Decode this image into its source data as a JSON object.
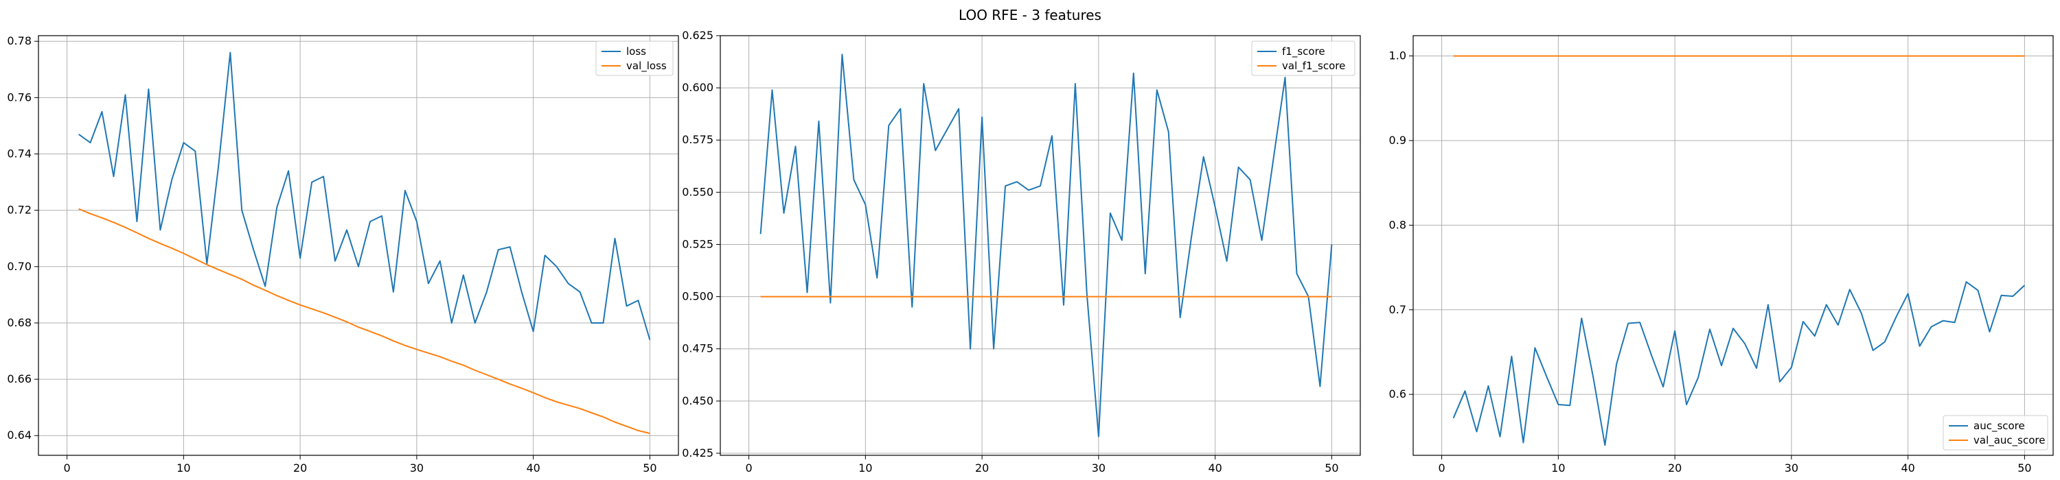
{
  "title": "LOO RFE - 3 features",
  "colors": {
    "series1": "#1f77b4",
    "series2": "#ff7f0e",
    "grid": "#b0b0b0",
    "axis": "#000000"
  },
  "chart_data": [
    {
      "type": "line",
      "title": "",
      "xlabel": "",
      "ylabel": "",
      "xlim": [
        -2.45,
        52.45
      ],
      "ylim": [
        0.633,
        0.782
      ],
      "xticks": [
        0,
        10,
        20,
        30,
        40,
        50
      ],
      "xtick_labels": [
        "0",
        "10",
        "20",
        "30",
        "40",
        "50"
      ],
      "yticks": [
        0.64,
        0.66,
        0.68,
        0.7,
        0.72,
        0.74,
        0.76,
        0.78
      ],
      "ytick_labels": [
        "0.64",
        "0.66",
        "0.68",
        "0.70",
        "0.72",
        "0.74",
        "0.76",
        "0.78"
      ],
      "grid": true,
      "legend_position": "upper right",
      "x": [
        1,
        2,
        3,
        4,
        5,
        6,
        7,
        8,
        9,
        10,
        11,
        12,
        13,
        14,
        15,
        16,
        17,
        18,
        19,
        20,
        21,
        22,
        23,
        24,
        25,
        26,
        27,
        28,
        29,
        30,
        31,
        32,
        33,
        34,
        35,
        36,
        37,
        38,
        39,
        40,
        41,
        42,
        43,
        44,
        45,
        46,
        47,
        48,
        49,
        50
      ],
      "series": [
        {
          "name": "loss",
          "color": "#1f77b4",
          "values": [
            0.747,
            0.744,
            0.755,
            0.732,
            0.761,
            0.716,
            0.763,
            0.713,
            0.731,
            0.744,
            0.741,
            0.701,
            0.736,
            0.776,
            0.72,
            0.706,
            0.693,
            0.721,
            0.734,
            0.703,
            0.73,
            0.732,
            0.702,
            0.713,
            0.7,
            0.716,
            0.718,
            0.691,
            0.727,
            0.716,
            0.694,
            0.702,
            0.68,
            0.697,
            0.68,
            0.691,
            0.706,
            0.707,
            0.691,
            0.677,
            0.704,
            0.7,
            0.694,
            0.691,
            0.68,
            0.68,
            0.71,
            0.686,
            0.688,
            0.674
          ]
        },
        {
          "name": "val_loss",
          "color": "#ff7f0e",
          "values": [
            0.7205,
            0.7188,
            0.7173,
            0.7157,
            0.7139,
            0.712,
            0.71,
            0.7082,
            0.7065,
            0.7047,
            0.7027,
            0.7007,
            0.6989,
            0.6972,
            0.6955,
            0.6934,
            0.6916,
            0.6897,
            0.688,
            0.6864,
            0.685,
            0.6836,
            0.682,
            0.6804,
            0.6785,
            0.677,
            0.6754,
            0.6736,
            0.672,
            0.6706,
            0.6693,
            0.668,
            0.6664,
            0.665,
            0.6632,
            0.6616,
            0.66,
            0.6583,
            0.6568,
            0.6552,
            0.6535,
            0.652,
            0.6508,
            0.6496,
            0.6481,
            0.6466,
            0.6448,
            0.6433,
            0.6418,
            0.6408
          ]
        }
      ]
    },
    {
      "type": "line",
      "title": "",
      "xlabel": "",
      "ylabel": "",
      "xlim": [
        -2.45,
        52.45
      ],
      "ylim": [
        0.424,
        0.625
      ],
      "xticks": [
        0,
        10,
        20,
        30,
        40,
        50
      ],
      "xtick_labels": [
        "0",
        "10",
        "20",
        "30",
        "40",
        "50"
      ],
      "yticks": [
        0.425,
        0.45,
        0.475,
        0.5,
        0.525,
        0.55,
        0.575,
        0.6,
        0.625
      ],
      "ytick_labels": [
        "0.425",
        "0.450",
        "0.475",
        "0.500",
        "0.525",
        "0.550",
        "0.575",
        "0.600",
        "0.625"
      ],
      "grid": true,
      "legend_position": "upper right",
      "x": [
        1,
        2,
        3,
        4,
        5,
        6,
        7,
        8,
        9,
        10,
        11,
        12,
        13,
        14,
        15,
        16,
        17,
        18,
        19,
        20,
        21,
        22,
        23,
        24,
        25,
        26,
        27,
        28,
        29,
        30,
        31,
        32,
        33,
        34,
        35,
        36,
        37,
        38,
        39,
        40,
        41,
        42,
        43,
        44,
        45,
        46,
        47,
        48,
        49,
        50
      ],
      "series": [
        {
          "name": "f1_score",
          "color": "#1f77b4",
          "values": [
            0.53,
            0.599,
            0.54,
            0.572,
            0.502,
            0.584,
            0.497,
            0.616,
            0.556,
            0.544,
            0.509,
            0.582,
            0.59,
            0.495,
            0.602,
            0.57,
            0.58,
            0.59,
            0.475,
            0.586,
            0.475,
            0.553,
            0.555,
            0.551,
            0.553,
            0.577,
            0.496,
            0.602,
            0.501,
            0.433,
            0.54,
            0.527,
            0.607,
            0.511,
            0.599,
            0.579,
            0.49,
            0.53,
            0.567,
            0.543,
            0.517,
            0.562,
            0.556,
            0.527,
            0.566,
            0.605,
            0.511,
            0.5,
            0.457,
            0.525
          ]
        },
        {
          "name": "val_f1_score",
          "color": "#ff7f0e",
          "values": [
            0.5,
            0.5,
            0.5,
            0.5,
            0.5,
            0.5,
            0.5,
            0.5,
            0.5,
            0.5,
            0.5,
            0.5,
            0.5,
            0.5,
            0.5,
            0.5,
            0.5,
            0.5,
            0.5,
            0.5,
            0.5,
            0.5,
            0.5,
            0.5,
            0.5,
            0.5,
            0.5,
            0.5,
            0.5,
            0.5,
            0.5,
            0.5,
            0.5,
            0.5,
            0.5,
            0.5,
            0.5,
            0.5,
            0.5,
            0.5,
            0.5,
            0.5,
            0.5,
            0.5,
            0.5,
            0.5,
            0.5,
            0.5,
            0.5,
            0.5
          ]
        }
      ]
    },
    {
      "type": "line",
      "title": "",
      "xlabel": "",
      "ylabel": "",
      "xlim": [
        -2.45,
        52.45
      ],
      "ylim": [
        0.528,
        1.024
      ],
      "xticks": [
        0,
        10,
        20,
        30,
        40,
        50
      ],
      "xtick_labels": [
        "0",
        "10",
        "20",
        "30",
        "40",
        "50"
      ],
      "yticks": [
        0.6,
        0.7,
        0.8,
        0.9,
        1.0
      ],
      "ytick_labels": [
        "0.6",
        "0.7",
        "0.8",
        "0.9",
        "1.0"
      ],
      "grid": true,
      "legend_position": "lower right",
      "x": [
        1,
        2,
        3,
        4,
        5,
        6,
        7,
        8,
        9,
        10,
        11,
        12,
        13,
        14,
        15,
        16,
        17,
        18,
        19,
        20,
        21,
        22,
        23,
        24,
        25,
        26,
        27,
        28,
        29,
        30,
        31,
        32,
        33,
        34,
        35,
        36,
        37,
        38,
        39,
        40,
        41,
        42,
        43,
        44,
        45,
        46,
        47,
        48,
        49,
        50
      ],
      "series": [
        {
          "name": "auc_score",
          "color": "#1f77b4",
          "values": [
            0.572,
            0.604,
            0.556,
            0.61,
            0.55,
            0.645,
            0.543,
            0.655,
            0.621,
            0.588,
            0.587,
            0.69,
            0.62,
            0.54,
            0.636,
            0.684,
            0.685,
            0.646,
            0.609,
            0.675,
            0.588,
            0.62,
            0.677,
            0.634,
            0.678,
            0.66,
            0.631,
            0.706,
            0.615,
            0.632,
            0.686,
            0.669,
            0.706,
            0.682,
            0.724,
            0.696,
            0.652,
            0.662,
            0.692,
            0.719,
            0.657,
            0.68,
            0.687,
            0.685,
            0.733,
            0.723,
            0.674,
            0.717,
            0.716,
            0.729
          ]
        },
        {
          "name": "val_auc_score",
          "color": "#ff7f0e",
          "values": [
            1.0,
            1.0,
            1.0,
            1.0,
            1.0,
            1.0,
            1.0,
            1.0,
            1.0,
            1.0,
            1.0,
            1.0,
            1.0,
            1.0,
            1.0,
            1.0,
            1.0,
            1.0,
            1.0,
            1.0,
            1.0,
            1.0,
            1.0,
            1.0,
            1.0,
            1.0,
            1.0,
            1.0,
            1.0,
            1.0,
            1.0,
            1.0,
            1.0,
            1.0,
            1.0,
            1.0,
            1.0,
            1.0,
            1.0,
            1.0,
            1.0,
            1.0,
            1.0,
            1.0,
            1.0,
            1.0,
            1.0,
            1.0,
            1.0,
            1.0
          ]
        }
      ]
    }
  ]
}
